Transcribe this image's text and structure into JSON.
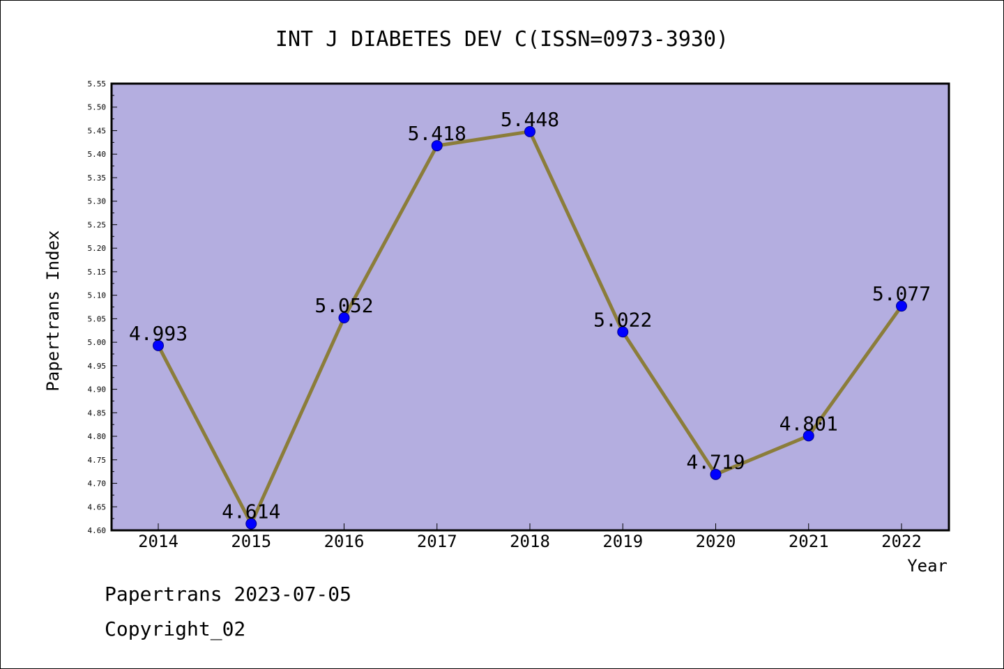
{
  "chart_data": {
    "type": "line",
    "title": "INT J DIABETES DEV C(ISSN=0973-3930)",
    "xlabel": "Year",
    "ylabel": "Papertrans Index",
    "categories": [
      "2014",
      "2015",
      "2016",
      "2017",
      "2018",
      "2019",
      "2020",
      "2021",
      "2022"
    ],
    "series": [
      {
        "values": [
          4.993,
          4.614,
          5.052,
          5.418,
          5.448,
          5.022,
          4.719,
          4.801,
          5.077
        ],
        "data_labels": [
          "4.993",
          "4.614",
          "5.052",
          "5.418",
          "5.448",
          "5.022",
          "4.719",
          "4.801",
          "5.077"
        ]
      }
    ],
    "ylim": [
      4.6,
      5.55
    ],
    "yticks": [
      "4.60",
      "4.65",
      "4.70",
      "4.75",
      "4.80",
      "4.85",
      "4.90",
      "4.95",
      "5.00",
      "5.05",
      "5.10",
      "5.15",
      "5.20",
      "5.25",
      "5.30",
      "5.35",
      "5.40",
      "5.45",
      "5.50",
      "5.55"
    ],
    "grid": false,
    "legend": "none",
    "colors": {
      "plot_background": "#b4aee0",
      "line": "#8b7d3a",
      "marker": "#0000ff",
      "marker_edge": "#00008b"
    }
  },
  "footer": {
    "source": "Papertrans 2023-07-05",
    "copyright": "Copyright_02"
  }
}
